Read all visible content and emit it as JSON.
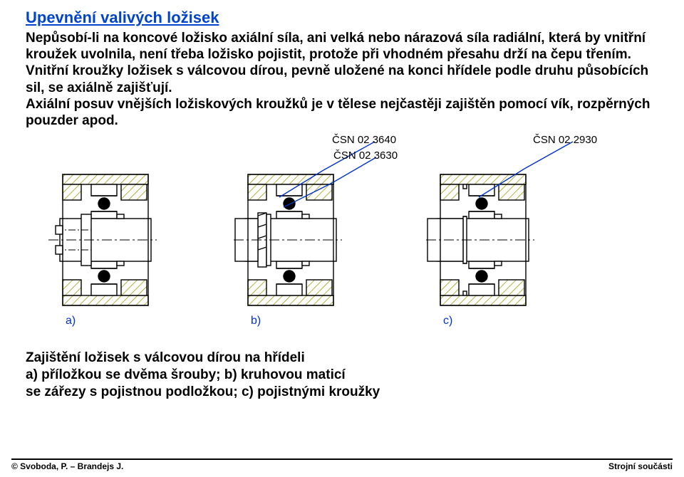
{
  "title": "Upevnění valivých ložisek",
  "para1": "Nepůsobí-li na koncové ložisko axiální síla, ani velká nebo nárazová síla radiální, která by vnitřní kroužek uvolnila, není třeba ložisko pojistit, protože při vhodném přesahu drží na čepu třením.",
  "para2": "Vnitřní kroužky ložisek s válcovou dírou, pevně uložené na konci hřídele podle druhu působících sil, se axiálně zajišťují.",
  "para3": "Axiální posuv vnějších ložiskových kroužků je v tělese nejčastěji zajištěn pomocí vík, rozpěrných pouzder apod.",
  "caption": {
    "line1": "Zajištění ložisek s válcovou dírou  na hřídeli",
    "line2": "a) příložkou se dvěma šrouby;  b) kruhovou maticí",
    "line3": "se zářezy s pojistnou podložkou; c) pojistnými kroužky"
  },
  "figure": {
    "panels": [
      "a)",
      "b)",
      "c)"
    ],
    "callouts": [
      "ČSN 02 3640",
      "ČSN 02 3630",
      "ČSN 02 2930"
    ],
    "colors": {
      "stroke": "#000000",
      "hatch": "#999900",
      "ball": "#000000",
      "callout": "#0033cc",
      "labelAxis": "#0033cc",
      "bg": "#ffffff"
    },
    "line_width": 1.4,
    "ball_radius": 8
  },
  "footer": {
    "left": "© Svoboda, P. – Brandejs J.",
    "right": "Strojní součásti"
  }
}
